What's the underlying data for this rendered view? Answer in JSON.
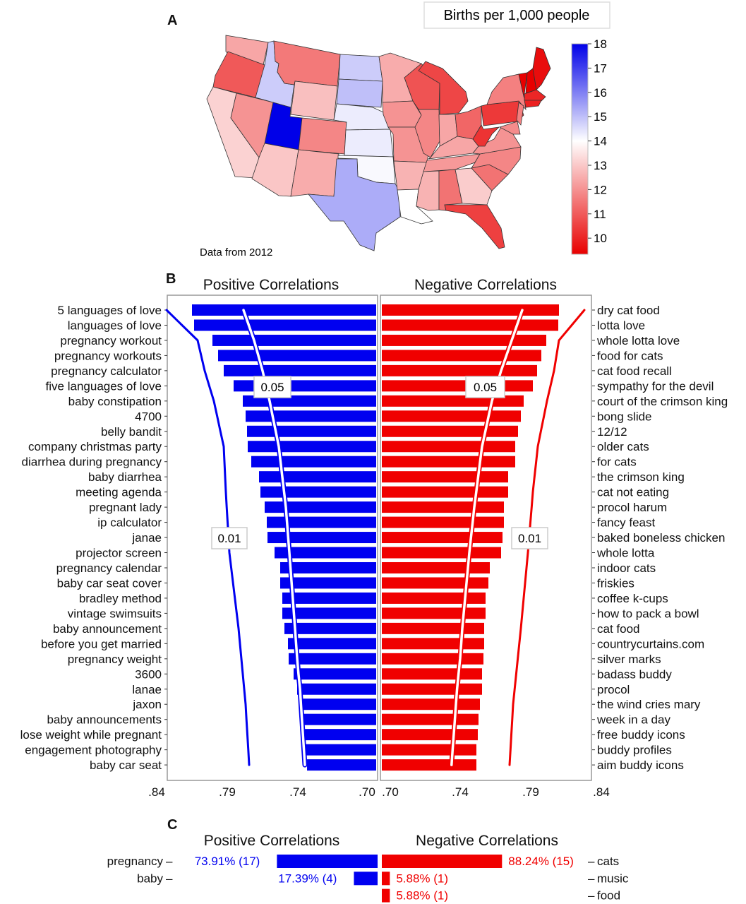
{
  "panels": {
    "a": "A",
    "b": "B",
    "c": "C"
  },
  "map": {
    "title": "Births per 1,000 people",
    "note": "Data from 2012",
    "colorbar": {
      "ticks": [
        "18",
        "17",
        "16",
        "15",
        "14",
        "13",
        "12",
        "11",
        "10"
      ],
      "min": 10,
      "max": 18,
      "mid": 14,
      "colors": {
        "high": "#0000e8",
        "mid": "#ffffff",
        "low": "#e80000"
      }
    },
    "states": [
      {
        "name": "WA",
        "value": 12.6
      },
      {
        "name": "OR",
        "value": 11.4
      },
      {
        "name": "CA",
        "value": 13.3
      },
      {
        "name": "NV",
        "value": 12.3
      },
      {
        "name": "ID",
        "value": 14.8
      },
      {
        "name": "MT",
        "value": 11.9
      },
      {
        "name": "WY",
        "value": 13.0
      },
      {
        "name": "UT",
        "value": 18.0
      },
      {
        "name": "CO",
        "value": 12.1
      },
      {
        "name": "AZ",
        "value": 13.1
      },
      {
        "name": "NM",
        "value": 12.7
      },
      {
        "name": "ND",
        "value": 14.8
      },
      {
        "name": "SD",
        "value": 15.0
      },
      {
        "name": "NE",
        "value": 14.3
      },
      {
        "name": "KS",
        "value": 14.3
      },
      {
        "name": "OK",
        "value": 14.1
      },
      {
        "name": "TX",
        "value": 15.3
      },
      {
        "name": "MN",
        "value": 12.7
      },
      {
        "name": "IA",
        "value": 12.3
      },
      {
        "name": "MO",
        "value": 12.3
      },
      {
        "name": "AR",
        "value": 12.8
      },
      {
        "name": "LA",
        "value": 14.0
      },
      {
        "name": "WI",
        "value": 11.3
      },
      {
        "name": "IL",
        "value": 12.1
      },
      {
        "name": "MI",
        "value": 11.1
      },
      {
        "name": "IN",
        "value": 12.6
      },
      {
        "name": "OH",
        "value": 11.6
      },
      {
        "name": "KY",
        "value": 12.6
      },
      {
        "name": "TN",
        "value": 12.4
      },
      {
        "name": "MS",
        "value": 12.8
      },
      {
        "name": "AL",
        "value": 11.8
      },
      {
        "name": "GA",
        "value": 13.2
      },
      {
        "name": "FL",
        "value": 11.0
      },
      {
        "name": "SC",
        "value": 11.8
      },
      {
        "name": "NC",
        "value": 12.1
      },
      {
        "name": "VA",
        "value": 12.3
      },
      {
        "name": "WV",
        "value": 10.8
      },
      {
        "name": "PA",
        "value": 10.9
      },
      {
        "name": "NY",
        "value": 12.0
      },
      {
        "name": "NJ",
        "value": 12.0
      },
      {
        "name": "MD",
        "value": 12.2
      },
      {
        "name": "VT",
        "value": 9.9
      },
      {
        "name": "NH",
        "value": 9.6
      },
      {
        "name": "ME",
        "value": 10.2
      },
      {
        "name": "MA",
        "value": 10.6
      },
      {
        "name": "CT",
        "value": 10.5
      }
    ]
  },
  "chart_data": [
    {
      "type": "bar",
      "orientation": "horizontal",
      "xlim": [
        0.84,
        0.7
      ],
      "xticks": [
        ".84",
        ".79",
        ".74",
        ".70"
      ],
      "colors": {
        "positive": "#0000f0",
        "negative": "#f00000"
      },
      "positive": {
        "title": "Positive Correlations",
        "categories": [
          "5 languages of love",
          "languages of love",
          "pregnancy workout",
          "pregnancy workouts",
          "pregnancy calculator",
          "five languages of love",
          "baby constipation",
          "4700",
          "belly bandit",
          "company christmas party",
          "diarrhea during pregnancy",
          "baby diarrhea",
          "meeting agenda",
          "pregnant lady",
          "ip calculator",
          "janae",
          "projector screen",
          "pregnancy calendar",
          "baby car seat cover",
          "bradley method",
          "vintage swimsuits",
          "baby announcement",
          "before you get married",
          "pregnancy weight",
          "3600",
          "lanae",
          "jaxon",
          "baby announcements",
          "lose weight while pregnant",
          "engagement photography",
          "baby car seat"
        ],
        "values": [
          0.815,
          0.8135,
          0.8005,
          0.7965,
          0.7925,
          0.7855,
          0.779,
          0.777,
          0.776,
          0.7755,
          0.773,
          0.7675,
          0.7665,
          0.7635,
          0.762,
          0.7615,
          0.7565,
          0.7525,
          0.7525,
          0.751,
          0.751,
          0.7495,
          0.747,
          0.7465,
          0.743,
          0.7405,
          0.7393,
          0.7389,
          0.738,
          0.736,
          0.7353
        ],
        "thresholds": [
          {
            "label": "0.05",
            "points": [
              [
                1,
                0.7785
              ],
              [
                3,
                0.771
              ],
              [
                5,
                0.765
              ],
              [
                7,
                0.76
              ],
              [
                10,
                0.7535
              ],
              [
                14,
                0.7485
              ],
              [
                17,
                0.746
              ],
              [
                22,
                0.742
              ],
              [
                26,
                0.7389
              ],
              [
                31,
                0.7364
              ]
            ]
          },
          {
            "label": "0.01",
            "points": [
              [
                1,
                0.833
              ],
              [
                3,
                0.811
              ],
              [
                5,
                0.806
              ],
              [
                7,
                0.7995
              ],
              [
                10,
                0.7925
              ],
              [
                13,
                0.791
              ],
              [
                17,
                0.7885
              ],
              [
                22,
                0.782
              ],
              [
                27,
                0.777
              ],
              [
                31,
                0.7745
              ]
            ]
          }
        ]
      },
      "negative": {
        "title": "Negative Correlations",
        "categories": [
          "dry cat food",
          "lotta love",
          "whole lotta love",
          "food for cats",
          "cat food recall",
          "sympathy for the devil",
          "court of the crimson king",
          "bong slide",
          "12/12",
          "older cats",
          "for cats",
          "the crimson king",
          "cat not eating",
          "procol harum",
          "fancy feast",
          "baked boneless chicken",
          "whole lotta",
          "indoor cats",
          "friskies",
          "coffee k-cups",
          "how to pack a bowl",
          "cat food",
          "countrycurtains.com",
          "silver marks",
          "badass buddy",
          "procol",
          "the wind cries mary",
          "week in a day",
          "free buddy icons",
          "buddy profiles",
          "aim buddy icons"
        ],
        "values": [
          0.81,
          0.8095,
          0.801,
          0.7975,
          0.7945,
          0.7915,
          0.785,
          0.783,
          0.781,
          0.779,
          0.779,
          0.774,
          0.774,
          0.771,
          0.771,
          0.77,
          0.769,
          0.761,
          0.76,
          0.758,
          0.758,
          0.757,
          0.757,
          0.7565,
          0.7555,
          0.7555,
          0.754,
          0.753,
          0.7525,
          0.7515,
          0.7515
        ],
        "xticks": [
          ".70",
          ".74",
          ".79",
          ".84"
        ],
        "thresholds": [
          {
            "label": "0.05",
            "points": [
              [
                1,
                0.784
              ],
              [
                3,
                0.7765
              ],
              [
                5,
                0.769
              ],
              [
                7,
                0.7625
              ],
              [
                10,
                0.7555
              ],
              [
                14,
                0.75
              ],
              [
                17,
                0.7465
              ],
              [
                22,
                0.7415
              ],
              [
                26,
                0.7384
              ],
              [
                31,
                0.7356
              ]
            ]
          },
          {
            "label": "0.01",
            "points": [
              [
                1,
                0.828
              ],
              [
                3,
                0.81
              ],
              [
                5,
                0.8065
              ],
              [
                7,
                0.8015
              ],
              [
                10,
                0.795
              ],
              [
                13,
                0.7915
              ],
              [
                17,
                0.788
              ],
              [
                22,
                0.783
              ],
              [
                27,
                0.7775
              ],
              [
                31,
                0.775
              ]
            ]
          }
        ]
      }
    },
    {
      "type": "bar",
      "orientation": "horizontal",
      "positive": {
        "title": "Positive Correlations",
        "rows": [
          {
            "category": "pregnancy",
            "percent": 73.91,
            "count": 17,
            "label": "73.91% (17)"
          },
          {
            "category": "baby",
            "percent": 17.39,
            "count": 4,
            "label": "17.39% (4)"
          }
        ]
      },
      "negative": {
        "title": "Negative Correlations",
        "rows": [
          {
            "category": "cats",
            "percent": 88.24,
            "count": 15,
            "label": "88.24% (15)"
          },
          {
            "category": "music",
            "percent": 5.88,
            "count": 1,
            "label": "5.88% (1)"
          },
          {
            "category": "food",
            "percent": 5.88,
            "count": 1,
            "label": "5.88% (1)"
          }
        ]
      }
    }
  ]
}
